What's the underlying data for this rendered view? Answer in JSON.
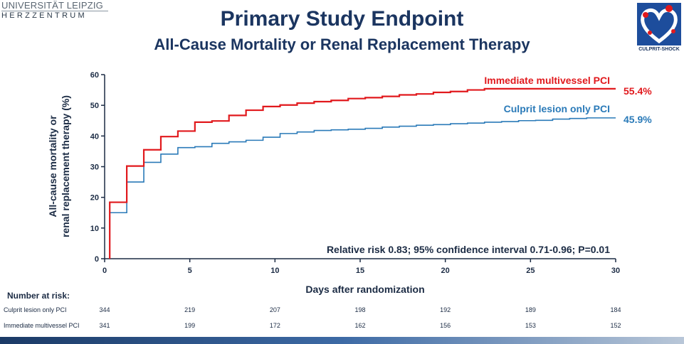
{
  "header": {
    "university_line1": "UNIVERSITÄT LEIPZIG",
    "university_line2": "HERZZENTRUM",
    "title": "Primary Study Endpoint",
    "subtitle": "All-Cause Mortality or Renal Replacement Therapy",
    "logo_text": "CULPRIT-SHOCK"
  },
  "colors": {
    "immediate": "#e1191d",
    "culprit": "#2a7ab8",
    "text_dark": "#1b2b44",
    "title": "#1b3560"
  },
  "chart_data": {
    "type": "line",
    "step": true,
    "xlabel": "Days after randomization",
    "ylabel_line1": "All-cause mortality or",
    "ylabel_line2": "renal replacement therapy (%)",
    "xlim": [
      0,
      30
    ],
    "ylim": [
      0,
      60
    ],
    "xticks": [
      0,
      5,
      10,
      15,
      20,
      25,
      30
    ],
    "yticks": [
      0,
      10,
      20,
      30,
      40,
      50,
      60
    ],
    "grid": false,
    "annotation": "Relative risk 0.83; 95% confidence interval 0.71-0.96; P=0.01",
    "series": [
      {
        "name": "Immediate multivessel PCI",
        "color": "#e1191d",
        "end_label": "55.4%",
        "x": [
          0.3,
          0.3,
          1.3,
          2.3,
          3.3,
          4.3,
          5.3,
          6.3,
          7.3,
          8.3,
          9.3,
          10.3,
          11.3,
          12.3,
          13.3,
          14.3,
          15.3,
          16.3,
          17.3,
          18.3,
          19.3,
          20.3,
          21.3,
          22.3,
          30
        ],
        "y": [
          0,
          18.4,
          30.2,
          35.5,
          39.8,
          41.6,
          44.5,
          44.9,
          46.7,
          48.4,
          49.6,
          50.1,
          50.7,
          51.2,
          51.6,
          52.2,
          52.5,
          52.9,
          53.4,
          53.7,
          54.2,
          54.5,
          55.0,
          55.4,
          55.4
        ]
      },
      {
        "name": "Culprit lesion only PCI",
        "color": "#2a7ab8",
        "end_label": "45.9%",
        "x": [
          0.3,
          1.3,
          2.3,
          3.3,
          4.3,
          5.3,
          6.3,
          7.3,
          8.3,
          9.3,
          10.3,
          11.3,
          12.3,
          13.3,
          14.3,
          15.3,
          16.3,
          17.3,
          18.3,
          19.3,
          20.3,
          21.3,
          22.3,
          23.3,
          24.3,
          25.3,
          26.3,
          27.3,
          28.3,
          30
        ],
        "y": [
          15.0,
          25.0,
          31.4,
          34.1,
          36.2,
          36.5,
          37.6,
          38.1,
          38.6,
          39.6,
          40.8,
          41.3,
          41.8,
          42.0,
          42.2,
          42.5,
          42.9,
          43.2,
          43.5,
          43.7,
          44.0,
          44.2,
          44.5,
          44.7,
          45.0,
          45.1,
          45.5,
          45.7,
          45.9,
          45.9
        ]
      }
    ]
  },
  "risk_table": {
    "header": "Number at risk:",
    "days": [
      0,
      5,
      10,
      15,
      20,
      25,
      30
    ],
    "rows": [
      {
        "label": "Culprit lesion only PCI",
        "values": [
          "344",
          "219",
          "207",
          "198",
          "192",
          "189",
          "184"
        ]
      },
      {
        "label": "Immediate multivessel PCI",
        "values": [
          "341",
          "199",
          "172",
          "162",
          "156",
          "153",
          "152"
        ]
      }
    ]
  }
}
